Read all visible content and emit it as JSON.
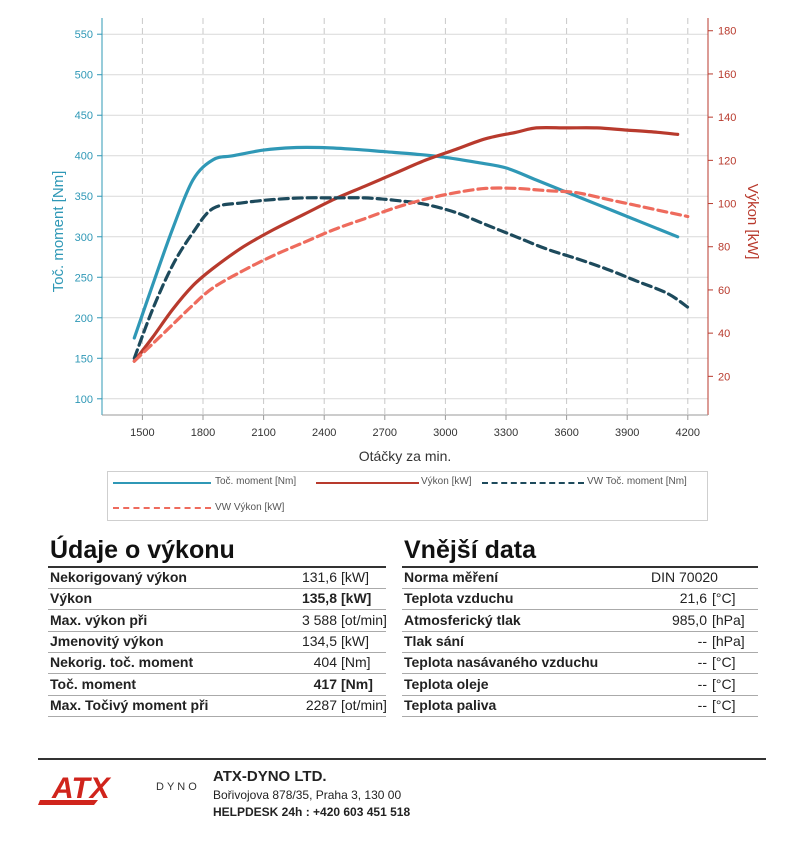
{
  "chart_data": {
    "type": "line",
    "xlabel": "Otáčky za min.",
    "ylabel_left": "Toč. moment [Nm]",
    "ylabel_right": "Výkon [kW]",
    "xlim": [
      1300,
      4300
    ],
    "ylim_left": [
      80,
      570
    ],
    "ylim_right": [
      2.1,
      185.9
    ],
    "x_ticks": [
      1500,
      1800,
      2100,
      2400,
      2700,
      3000,
      3300,
      3600,
      3900,
      4200
    ],
    "y_left_ticks": [
      100,
      150,
      200,
      250,
      300,
      350,
      400,
      450,
      500,
      550
    ],
    "y_right_ticks": [
      20,
      40,
      60,
      80,
      100,
      120,
      140,
      160,
      180
    ],
    "grid": true,
    "legend_position": "bottom",
    "series": [
      {
        "name": "Toč. moment [Nm]",
        "axis": "left",
        "color": "#2f98b6",
        "dash": false,
        "x": [
          1460,
          1550,
          1650,
          1750,
          1850,
          1950,
          2100,
          2250,
          2400,
          2550,
          2700,
          2850,
          3000,
          3150,
          3300,
          3450,
          3600,
          3750,
          3900,
          4050,
          4150
        ],
        "y": [
          175,
          240,
          310,
          370,
          395,
          400,
          407,
          410,
          410,
          408,
          405,
          402,
          398,
          392,
          385,
          370,
          355,
          340,
          325,
          310,
          300
        ]
      },
      {
        "name": "Výkon [kW]",
        "axis": "right",
        "color": "#b83a2d",
        "dash": false,
        "x": [
          1460,
          1550,
          1650,
          1750,
          1850,
          2000,
          2150,
          2300,
          2450,
          2600,
          2750,
          2900,
          3050,
          3200,
          3350,
          3450,
          3600,
          3750,
          3900,
          4050,
          4150
        ],
        "y": [
          27,
          38,
          51,
          62,
          70,
          80,
          88,
          95,
          102,
          108,
          114,
          120,
          125,
          130,
          133,
          135,
          135,
          135,
          134,
          133,
          132
        ]
      },
      {
        "name": "VW Toč. moment [Nm]",
        "axis": "left",
        "color": "#1d4a5c",
        "dash": true,
        "x": [
          1460,
          1550,
          1650,
          1750,
          1850,
          2000,
          2150,
          2300,
          2450,
          2600,
          2750,
          2900,
          3050,
          3200,
          3350,
          3500,
          3650,
          3800,
          3950,
          4100,
          4200
        ],
        "y": [
          150,
          210,
          265,
          305,
          335,
          342,
          346,
          348,
          348,
          348,
          345,
          340,
          330,
          315,
          300,
          285,
          273,
          260,
          245,
          230,
          213
        ]
      },
      {
        "name": "VW Výkon [kW]",
        "axis": "right",
        "color": "#ee6b5d",
        "dash": true,
        "x": [
          1460,
          1550,
          1650,
          1750,
          1850,
          2000,
          2150,
          2300,
          2450,
          2600,
          2750,
          2900,
          3050,
          3200,
          3350,
          3500,
          3650,
          3800,
          3950,
          4100,
          4200
        ],
        "y": [
          27,
          35,
          44,
          53,
          61,
          69,
          76,
          82,
          88,
          93,
          98,
          102,
          105,
          107,
          107,
          106,
          105,
          102,
          99,
          96,
          94
        ]
      }
    ]
  },
  "left_section": {
    "title": "Údaje o výkonu",
    "rows": [
      {
        "label": "Nekorigovaný výkon",
        "value": "131,6",
        "unit": "[kW]",
        "bold": false
      },
      {
        "label": "Výkon",
        "value": "135,8",
        "unit": "[kW]",
        "bold": true
      },
      {
        "label": "Max. výkon při",
        "value": "3 588",
        "unit": "[ot/min]",
        "bold": false
      },
      {
        "label": "Jmenovitý výkon",
        "value": "134,5",
        "unit": "[kW]",
        "bold": false
      },
      {
        "label": "Nekorig. toč. moment",
        "value": "404",
        "unit": "[Nm]",
        "bold": false
      },
      {
        "label": "Toč. moment",
        "value": "417",
        "unit": "[Nm]",
        "bold": true
      },
      {
        "label": "Max. Točivý moment při",
        "value": "2287",
        "unit": "[ot/min]",
        "bold": false
      }
    ]
  },
  "right_section": {
    "title": "Vnější data",
    "rows": [
      {
        "label": "Norma měření",
        "value": "DIN 70020",
        "unit": ""
      },
      {
        "label": "Teplota vzduchu",
        "value": "21,6",
        "unit": "[°C]"
      },
      {
        "label": "Atmosferický tlak",
        "value": "985,0",
        "unit": "[hPa]"
      },
      {
        "label": "Tlak sání",
        "value": "--",
        "unit": "[hPa]"
      },
      {
        "label": "Teplota nasávaného vzduchu",
        "value": "--",
        "unit": "[°C]"
      },
      {
        "label": "Teplota oleje",
        "value": "--",
        "unit": "[°C]"
      },
      {
        "label": "Teplota paliva",
        "value": "--",
        "unit": "[°C]"
      }
    ]
  },
  "footer": {
    "logo_text": "ATX",
    "logo_sub": "DYNO",
    "company": "ATX-DYNO LTD.",
    "address": "Bořivojova 878/35, Praha 3, 130 00",
    "helpdesk": "HELPDESK 24h : +420 603 451 518"
  },
  "colors": {
    "torque": "#2f98b6",
    "power": "#b83a2d",
    "vw_torque": "#1d4a5c",
    "vw_power": "#ee6b5d",
    "logo_red": "#d0241c"
  }
}
